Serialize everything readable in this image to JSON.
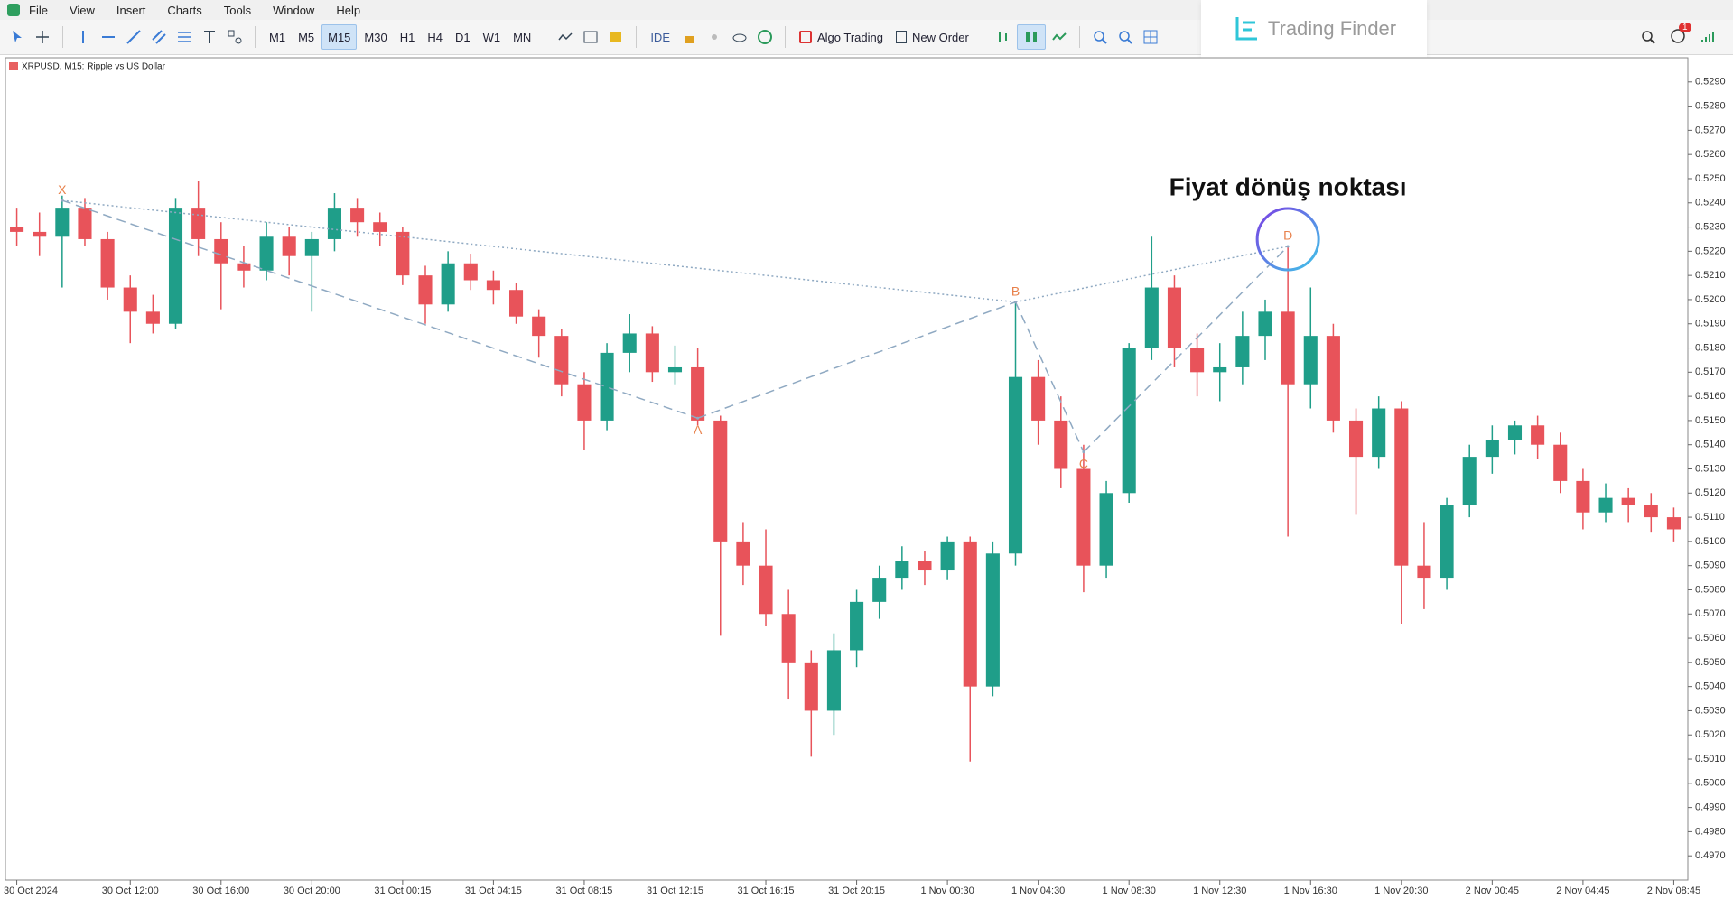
{
  "menu": [
    "File",
    "View",
    "Insert",
    "Charts",
    "Tools",
    "Window",
    "Help"
  ],
  "toolbar": {
    "timeframes": [
      "M1",
      "M5",
      "M15",
      "M30",
      "H1",
      "H4",
      "D1",
      "W1",
      "MN"
    ],
    "active_timeframe": 2,
    "ide": "IDE",
    "algo": "Algo Trading",
    "new_order": "New Order",
    "badge": "1"
  },
  "logo": "Trading Finder",
  "chart_data": {
    "type": "candlestick",
    "title": "XRPUSD, M15:  Ripple vs US Dollar",
    "annotation": "Fiyat dönüş noktası",
    "up_color": "#1f9e89",
    "down_color": "#e8535a",
    "pattern_color": "#8fa9c2",
    "pattern_label_color": "#e8804a",
    "categories": [
      "30 Oct 2024",
      null,
      null,
      null,
      null,
      "30 Oct 12:00",
      null,
      null,
      null,
      "30 Oct 16:00",
      null,
      null,
      null,
      "30 Oct 20:00",
      null,
      null,
      null,
      "31 Oct 00:15",
      null,
      null,
      null,
      "31 Oct 04:15",
      null,
      null,
      null,
      "31 Oct 08:15",
      null,
      null,
      null,
      "31 Oct 12:15",
      null,
      null,
      null,
      "31 Oct 16:15",
      null,
      null,
      null,
      "31 Oct 20:15",
      null,
      null,
      null,
      "1 Nov 00:30",
      null,
      null,
      null,
      "1 Nov 04:30",
      null,
      null,
      null,
      "1 Nov 08:30",
      null,
      null,
      null,
      "1 Nov 12:30",
      null,
      null,
      null,
      "1 Nov 16:30",
      null,
      null,
      null,
      "1 Nov 20:30",
      null,
      null,
      null,
      "2 Nov 00:45",
      null,
      null,
      null,
      "2 Nov 04:45",
      null,
      null,
      null,
      "2 Nov 08:45"
    ],
    "open": [
      0.523,
      0.5228,
      0.5226,
      0.5238,
      0.5225,
      0.5205,
      0.5195,
      0.519,
      0.5238,
      0.5225,
      0.5215,
      0.5212,
      0.5226,
      0.5218,
      0.5225,
      0.5238,
      0.5232,
      0.5228,
      0.521,
      0.5198,
      0.5215,
      0.5208,
      0.5204,
      0.5193,
      0.5185,
      0.5165,
      0.515,
      0.5178,
      0.5186,
      0.517,
      0.5172,
      0.515,
      0.51,
      0.509,
      0.507,
      0.505,
      0.503,
      0.5055,
      0.5075,
      0.5085,
      0.5092,
      0.5088,
      0.51,
      0.504,
      0.5095,
      0.5168,
      0.515,
      0.513,
      0.509,
      0.512,
      0.518,
      0.5205,
      0.518,
      0.517,
      0.5172,
      0.5185,
      0.5195,
      0.5165,
      0.5185,
      0.515,
      0.5135,
      0.5155,
      0.509,
      0.5085,
      0.5115,
      0.5135,
      0.5142,
      0.5148,
      0.514,
      0.5125,
      0.5112,
      0.5118,
      0.5115,
      0.511
    ],
    "high": [
      0.5238,
      0.5236,
      0.5243,
      0.5242,
      0.5228,
      0.521,
      0.5202,
      0.5242,
      0.5249,
      0.5232,
      0.5222,
      0.5232,
      0.523,
      0.5228,
      0.5244,
      0.5242,
      0.5236,
      0.523,
      0.5214,
      0.522,
      0.5219,
      0.5212,
      0.5207,
      0.5196,
      0.5188,
      0.517,
      0.5182,
      0.5194,
      0.5189,
      0.5181,
      0.518,
      0.5152,
      0.5108,
      0.5105,
      0.508,
      0.5055,
      0.5062,
      0.508,
      0.509,
      0.5098,
      0.5096,
      0.5102,
      0.5102,
      0.51,
      0.5199,
      0.5175,
      0.516,
      0.514,
      0.5125,
      0.5182,
      0.5226,
      0.521,
      0.5186,
      0.5182,
      0.5195,
      0.52,
      0.5222,
      0.5205,
      0.519,
      0.5155,
      0.516,
      0.5158,
      0.5108,
      0.5118,
      0.514,
      0.5148,
      0.515,
      0.5152,
      0.5145,
      0.513,
      0.5124,
      0.5122,
      0.512,
      0.5114
    ],
    "low": [
      0.5222,
      0.5218,
      0.5205,
      0.5222,
      0.52,
      0.5182,
      0.5186,
      0.5188,
      0.5218,
      0.5196,
      0.5205,
      0.5208,
      0.521,
      0.5195,
      0.522,
      0.5226,
      0.5222,
      0.5206,
      0.519,
      0.5195,
      0.5204,
      0.5198,
      0.519,
      0.5176,
      0.516,
      0.5138,
      0.5146,
      0.517,
      0.5166,
      0.5165,
      0.5148,
      0.5061,
      0.5082,
      0.5065,
      0.5035,
      0.5011,
      0.502,
      0.5048,
      0.5068,
      0.508,
      0.5082,
      0.5084,
      0.5009,
      0.5036,
      0.509,
      0.514,
      0.5122,
      0.5079,
      0.5085,
      0.5116,
      0.5175,
      0.5172,
      0.516,
      0.5158,
      0.5165,
      0.5175,
      0.5102,
      0.5155,
      0.5145,
      0.5111,
      0.513,
      0.5066,
      0.5072,
      0.508,
      0.511,
      0.5128,
      0.5136,
      0.5134,
      0.512,
      0.5105,
      0.5108,
      0.5108,
      0.5104,
      0.51
    ],
    "close": [
      0.5228,
      0.5226,
      0.5238,
      0.5225,
      0.5205,
      0.5195,
      0.519,
      0.5238,
      0.5225,
      0.5215,
      0.5212,
      0.5226,
      0.5218,
      0.5225,
      0.5238,
      0.5232,
      0.5228,
      0.521,
      0.5198,
      0.5215,
      0.5208,
      0.5204,
      0.5193,
      0.5185,
      0.5165,
      0.515,
      0.5178,
      0.5186,
      0.517,
      0.5172,
      0.515,
      0.51,
      0.509,
      0.507,
      0.505,
      0.503,
      0.5055,
      0.5075,
      0.5085,
      0.5092,
      0.5088,
      0.51,
      0.504,
      0.5095,
      0.5168,
      0.515,
      0.513,
      0.509,
      0.512,
      0.518,
      0.5205,
      0.518,
      0.517,
      0.5172,
      0.5185,
      0.5195,
      0.5165,
      0.5185,
      0.515,
      0.5135,
      0.5155,
      0.509,
      0.5085,
      0.5115,
      0.5135,
      0.5142,
      0.5148,
      0.514,
      0.5125,
      0.5112,
      0.5118,
      0.5115,
      0.511,
      0.5105
    ],
    "pattern": [
      {
        "label": "X",
        "index": 2,
        "price": 0.5241
      },
      {
        "label": "A",
        "index": 30,
        "price": 0.5151
      },
      {
        "label": "B",
        "index": 44,
        "price": 0.5199
      },
      {
        "label": "C",
        "index": 47,
        "price": 0.5137
      },
      {
        "label": "D",
        "index": 56,
        "price": 0.5222
      }
    ],
    "ylim": [
      0.496,
      0.53
    ],
    "yticks": [
      {
        "value": 0.529,
        "label": "0.5290"
      },
      {
        "value": 0.528,
        "label": "0.5280"
      },
      {
        "value": 0.527,
        "label": "0.5270"
      },
      {
        "value": 0.526,
        "label": "0.5260"
      },
      {
        "value": 0.525,
        "label": "0.5250"
      },
      {
        "value": 0.524,
        "label": "0.5240"
      },
      {
        "value": 0.523,
        "label": "0.5230"
      },
      {
        "value": 0.522,
        "label": "0.5220"
      },
      {
        "value": 0.521,
        "label": "0.5210"
      },
      {
        "value": 0.52,
        "label": "0.5200"
      },
      {
        "value": 0.519,
        "label": "0.5190"
      },
      {
        "value": 0.518,
        "label": "0.5180"
      },
      {
        "value": 0.517,
        "label": "0.5170"
      },
      {
        "value": 0.516,
        "label": "0.5160"
      },
      {
        "value": 0.515,
        "label": "0.5150"
      },
      {
        "value": 0.514,
        "label": "0.5140"
      },
      {
        "value": 0.513,
        "label": "0.5130"
      },
      {
        "value": 0.512,
        "label": "0.5120"
      },
      {
        "value": 0.511,
        "label": "0.5110"
      },
      {
        "value": 0.51,
        "label": "0.5100"
      },
      {
        "value": 0.509,
        "label": "0.5090"
      },
      {
        "value": 0.508,
        "label": "0.5080"
      },
      {
        "value": 0.507,
        "label": "0.5070"
      },
      {
        "value": 0.506,
        "label": "0.5060"
      },
      {
        "value": 0.505,
        "label": "0.5050"
      },
      {
        "value": 0.504,
        "label": "0.5040"
      },
      {
        "value": 0.503,
        "label": "0.5030"
      },
      {
        "value": 0.502,
        "label": "0.5020"
      },
      {
        "value": 0.501,
        "label": "0.5010"
      },
      {
        "value": 0.5,
        "label": "0.5000"
      },
      {
        "value": 0.499,
        "label": "0.4990"
      },
      {
        "value": 0.498,
        "label": "0.4980"
      },
      {
        "value": 0.497,
        "label": "0.4970"
      }
    ]
  }
}
